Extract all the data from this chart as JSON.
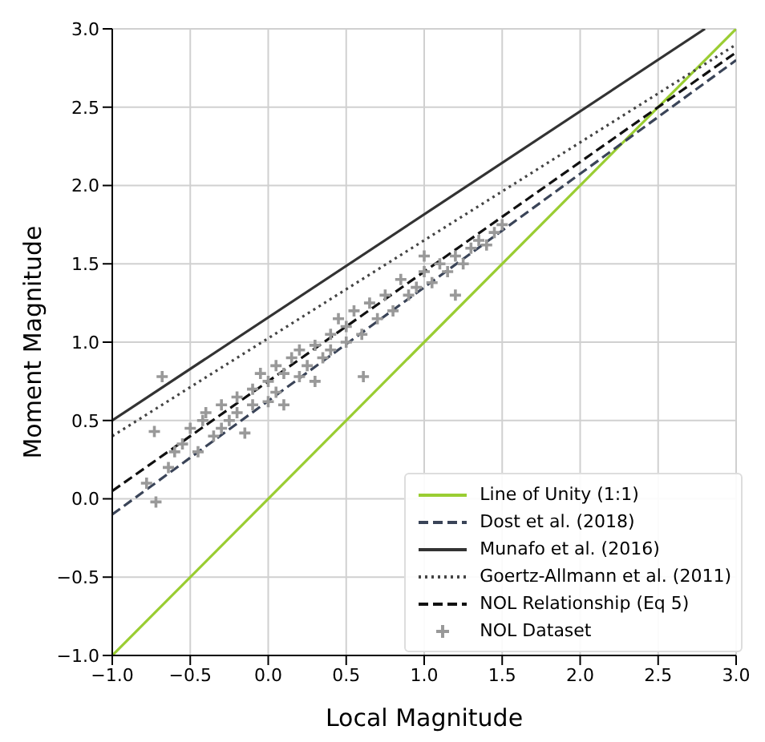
{
  "chart_data": {
    "type": "line",
    "xlabel": "Local Magnitude",
    "ylabel": "Moment Magnitude",
    "xlim": [
      -1,
      3
    ],
    "ylim": [
      -1,
      3
    ],
    "xticks": [
      {
        "value": -1,
        "label": "−1.0"
      },
      {
        "value": -0.5,
        "label": "−0.5"
      },
      {
        "value": 0,
        "label": "0.0"
      },
      {
        "value": 0.5,
        "label": "0.5"
      },
      {
        "value": 1,
        "label": "1.0"
      },
      {
        "value": 1.5,
        "label": "1.5"
      },
      {
        "value": 2,
        "label": "2.0"
      },
      {
        "value": 2.5,
        "label": "2.5"
      },
      {
        "value": 3,
        "label": "3.0"
      }
    ],
    "yticks": [
      {
        "value": -1,
        "label": "−1.0"
      },
      {
        "value": -0.5,
        "label": "−0.5"
      },
      {
        "value": 0,
        "label": "0.0"
      },
      {
        "value": 0.5,
        "label": "0.5"
      },
      {
        "value": 1,
        "label": "1.0"
      },
      {
        "value": 1.5,
        "label": "1.5"
      },
      {
        "value": 2,
        "label": "2.0"
      },
      {
        "value": 2.5,
        "label": "2.5"
      },
      {
        "value": 3,
        "label": "3.0"
      }
    ],
    "grid": true,
    "legend": "bottom right",
    "series": [
      {
        "name": "Line of Unity (1:1)",
        "color": "#9acd32",
        "line_style": "solid",
        "x": [
          -1,
          3
        ],
        "values": [
          -1,
          3
        ]
      },
      {
        "name": "Dost et al. (2018)",
        "color": "#3a4458",
        "line_style": "dashed",
        "x": [
          -1,
          3
        ],
        "values": [
          -0.1,
          2.8
        ]
      },
      {
        "name": "Munafo et al. (2016)",
        "color": "#333333",
        "line_style": "solid",
        "x": [
          -1,
          2.8
        ],
        "values": [
          0.5,
          3.0
        ]
      },
      {
        "name": "Goertz-Allmann et al. (2011)",
        "color": "#444444",
        "line_style": "dotted",
        "x": [
          -1,
          3
        ],
        "values": [
          0.4,
          2.9
        ]
      },
      {
        "name": "NOL Relationship (Eq 5)",
        "color": "#111111",
        "line_style": "dashed",
        "x": [
          -1,
          3
        ],
        "values": [
          0.05,
          2.85
        ]
      },
      {
        "name": "NOL Dataset",
        "type": "scatter",
        "color": "#999999",
        "marker": "cross",
        "x": [
          -0.68,
          -0.73,
          -0.72,
          -0.78,
          -0.64,
          -0.6,
          -0.55,
          -0.5,
          -0.45,
          -0.42,
          -0.4,
          -0.35,
          -0.3,
          -0.3,
          -0.25,
          -0.2,
          -0.2,
          -0.15,
          -0.1,
          -0.1,
          -0.05,
          0,
          0,
          0.05,
          0.05,
          0.1,
          0.1,
          0.15,
          0.2,
          0.2,
          0.25,
          0.3,
          0.3,
          0.35,
          0.4,
          0.4,
          0.45,
          0.5,
          0.5,
          0.55,
          0.6,
          0.61,
          0.65,
          0.7,
          0.75,
          0.8,
          0.85,
          0.9,
          0.95,
          1.0,
          1.05,
          1.1,
          1.15,
          1.2,
          1.25,
          1.3,
          1.35,
          1.4,
          1.45,
          1.5,
          1.2,
          1.0
        ],
        "values": [
          0.78,
          0.43,
          -0.02,
          0.1,
          0.2,
          0.3,
          0.35,
          0.45,
          0.3,
          0.5,
          0.55,
          0.4,
          0.6,
          0.45,
          0.5,
          0.65,
          0.55,
          0.42,
          0.7,
          0.6,
          0.8,
          0.75,
          0.62,
          0.68,
          0.85,
          0.8,
          0.6,
          0.9,
          0.78,
          0.95,
          0.85,
          0.98,
          0.75,
          0.9,
          1.05,
          0.95,
          1.15,
          1.0,
          1.1,
          1.2,
          1.05,
          0.78,
          1.25,
          1.15,
          1.3,
          1.2,
          1.4,
          1.3,
          1.35,
          1.45,
          1.38,
          1.5,
          1.45,
          1.55,
          1.5,
          1.6,
          1.65,
          1.62,
          1.7,
          1.75,
          1.3,
          1.55
        ]
      }
    ]
  }
}
